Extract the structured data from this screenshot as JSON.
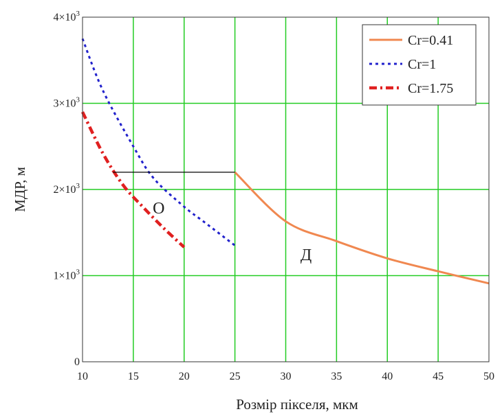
{
  "chart_data": {
    "type": "line",
    "xlabel": "Розмір пікселя, мкм",
    "ylabel": "МДР, м",
    "xlim": [
      10,
      50
    ],
    "ylim": [
      0,
      4000
    ],
    "x_ticks": [
      "10",
      "15",
      "20",
      "25",
      "30",
      "35",
      "40",
      "45",
      "50"
    ],
    "y_ticks": [
      {
        "value": 0,
        "mantissa": "0",
        "exp": ""
      },
      {
        "value": 1000,
        "mantissa": "1×10",
        "exp": "3"
      },
      {
        "value": 2000,
        "mantissa": "2×10",
        "exp": "3"
      },
      {
        "value": 3000,
        "mantissa": "3×10",
        "exp": "3"
      },
      {
        "value": 4000,
        "mantissa": "4×10",
        "exp": "3"
      }
    ],
    "grid": true,
    "grid_color": "#22cc22",
    "legend_position": "top-right",
    "series": [
      {
        "name": "Cr=0.41",
        "color": "#f08850",
        "style": "solid",
        "x": [
          25,
          30,
          35,
          40,
          45,
          50
        ],
        "y": [
          2200,
          1630,
          1400,
          1200,
          1050,
          910
        ]
      },
      {
        "name": "Cr=1",
        "color": "#2222cc",
        "style": "dotted",
        "x": [
          10,
          12,
          15,
          17,
          20,
          22,
          25
        ],
        "y": [
          3750,
          3150,
          2500,
          2130,
          1800,
          1620,
          1350
        ]
      },
      {
        "name": "Cr=1.75",
        "color": "#e02020",
        "style": "dashdot",
        "x": [
          10,
          12,
          14,
          16,
          18,
          20
        ],
        "y": [
          2900,
          2420,
          2050,
          1790,
          1550,
          1330
        ]
      }
    ],
    "reference_line": {
      "x": [
        13,
        25
      ],
      "y": [
        2200,
        2200
      ],
      "color": "#000000"
    },
    "annotations": [
      {
        "text": "О",
        "x": 17.5,
        "y": 1720
      },
      {
        "text": "Д",
        "x": 32,
        "y": 1180
      }
    ]
  }
}
